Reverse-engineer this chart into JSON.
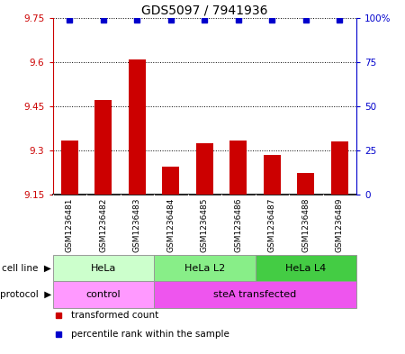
{
  "title": "GDS5097 / 7941936",
  "samples": [
    "GSM1236481",
    "GSM1236482",
    "GSM1236483",
    "GSM1236484",
    "GSM1236485",
    "GSM1236486",
    "GSM1236487",
    "GSM1236488",
    "GSM1236489"
  ],
  "bar_values": [
    9.335,
    9.47,
    9.61,
    9.245,
    9.325,
    9.335,
    9.285,
    9.225,
    9.33
  ],
  "percentile_values": [
    99,
    99,
    99,
    99,
    99,
    99,
    99,
    99,
    99
  ],
  "ymin": 9.15,
  "ymax": 9.75,
  "yticks": [
    9.15,
    9.3,
    9.45,
    9.6,
    9.75
  ],
  "ytick_labels": [
    "9.15",
    "9.3",
    "9.45",
    "9.6",
    "9.75"
  ],
  "y2min": 0,
  "y2max": 100,
  "y2ticks": [
    0,
    25,
    50,
    75,
    100
  ],
  "y2tick_labels": [
    "0",
    "25",
    "50",
    "75",
    "100%"
  ],
  "bar_color": "#cc0000",
  "dot_color": "#0000cc",
  "tick_bg_color": "#d8d8d8",
  "cell_line_groups": [
    {
      "label": "HeLa",
      "start": 0,
      "end": 3,
      "color": "#ccffcc"
    },
    {
      "label": "HeLa L2",
      "start": 3,
      "end": 6,
      "color": "#88ee88"
    },
    {
      "label": "HeLa L4",
      "start": 6,
      "end": 9,
      "color": "#44cc44"
    }
  ],
  "protocol_groups": [
    {
      "label": "control",
      "start": 0,
      "end": 3,
      "color": "#ff99ff"
    },
    {
      "label": "steA transfected",
      "start": 3,
      "end": 9,
      "color": "#ee55ee"
    }
  ],
  "legend_items": [
    {
      "label": "transformed count",
      "color": "#cc0000"
    },
    {
      "label": "percentile rank within the sample",
      "color": "#0000cc"
    }
  ]
}
